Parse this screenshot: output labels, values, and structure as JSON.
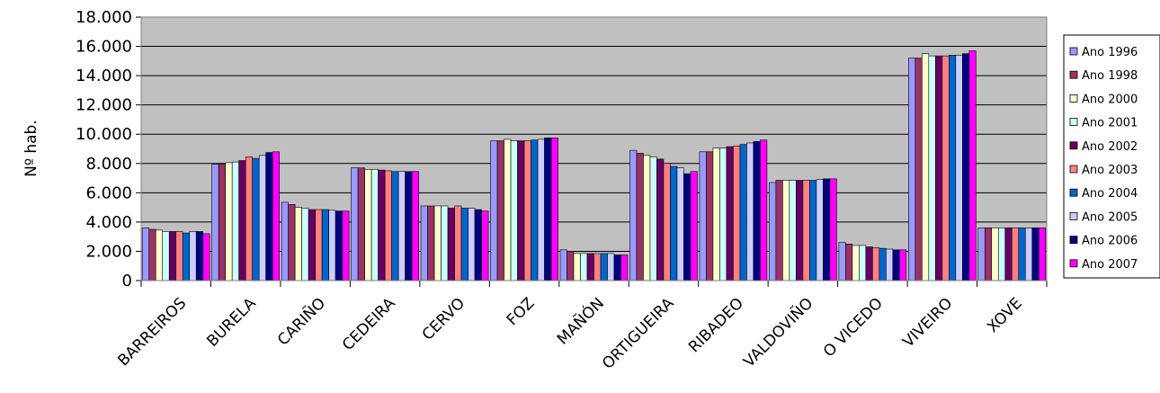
{
  "chart_data": {
    "type": "bar",
    "ylabel": "Nº hab.",
    "ylim": [
      0,
      18000
    ],
    "yticks": [
      0,
      2000,
      4000,
      6000,
      8000,
      10000,
      12000,
      14000,
      16000,
      18000
    ],
    "ytick_labels": [
      "0",
      "2.000",
      "4.000",
      "6.000",
      "8.000",
      "10.000",
      "12.000",
      "14.000",
      "16.000",
      "18.000"
    ],
    "grid": true,
    "plot_background": "#c0c0c0",
    "legend_position": "right",
    "categories": [
      "BARREIROS",
      "BURELA",
      "CARIÑO",
      "CEDEIRA",
      "CERVO",
      "FOZ",
      "MAÑÓN",
      "ORTIGUEIRA",
      "RIBADEO",
      "VALDOVIÑO",
      "O VICEDO",
      "VIVEIRO",
      "XOVE"
    ],
    "series": [
      {
        "name": "Ano 1996",
        "color": "#9999ff",
        "values": [
          3600,
          7950,
          5350,
          7700,
          5100,
          9550,
          2100,
          8900,
          8800,
          6700,
          2600,
          15200,
          3600
        ]
      },
      {
        "name": "Ano 1998",
        "color": "#993366",
        "values": [
          3500,
          7950,
          5200,
          7700,
          5100,
          9550,
          2000,
          8700,
          8800,
          6850,
          2500,
          15200,
          3600
        ]
      },
      {
        "name": "Ano 2000",
        "color": "#ffffcc",
        "values": [
          3450,
          8050,
          5000,
          7600,
          5100,
          9650,
          1850,
          8550,
          9050,
          6850,
          2400,
          15500,
          3600
        ]
      },
      {
        "name": "Ano 2001",
        "color": "#ccffff",
        "values": [
          3350,
          8100,
          4950,
          7600,
          5100,
          9550,
          1850,
          8450,
          9050,
          6850,
          2400,
          15350,
          3600
        ]
      },
      {
        "name": "Ano 2002",
        "color": "#660066",
        "values": [
          3350,
          8200,
          4850,
          7550,
          4950,
          9550,
          1850,
          8300,
          9150,
          6850,
          2300,
          15350,
          3600
        ]
      },
      {
        "name": "Ano 2003",
        "color": "#ff8080",
        "values": [
          3350,
          8450,
          4850,
          7500,
          5100,
          9550,
          1850,
          8000,
          9200,
          6850,
          2250,
          15350,
          3600
        ]
      },
      {
        "name": "Ano 2004",
        "color": "#0066cc",
        "values": [
          3250,
          8350,
          4850,
          7450,
          4950,
          9600,
          1850,
          7800,
          9300,
          6850,
          2200,
          15400,
          3600
        ]
      },
      {
        "name": "Ano 2005",
        "color": "#ccccff",
        "values": [
          3350,
          8550,
          4800,
          7450,
          4950,
          9650,
          1850,
          7700,
          9400,
          6900,
          2150,
          15400,
          3600
        ]
      },
      {
        "name": "Ano 2006",
        "color": "#000080",
        "values": [
          3350,
          8750,
          4750,
          7450,
          4850,
          9750,
          1750,
          7300,
          9500,
          6950,
          2100,
          15500,
          3600
        ]
      },
      {
        "name": "Ano 2007",
        "color": "#ff00ff",
        "values": [
          3200,
          8800,
          4750,
          7450,
          4750,
          9750,
          1750,
          7450,
          9600,
          6950,
          2100,
          15700,
          3600
        ]
      }
    ]
  }
}
